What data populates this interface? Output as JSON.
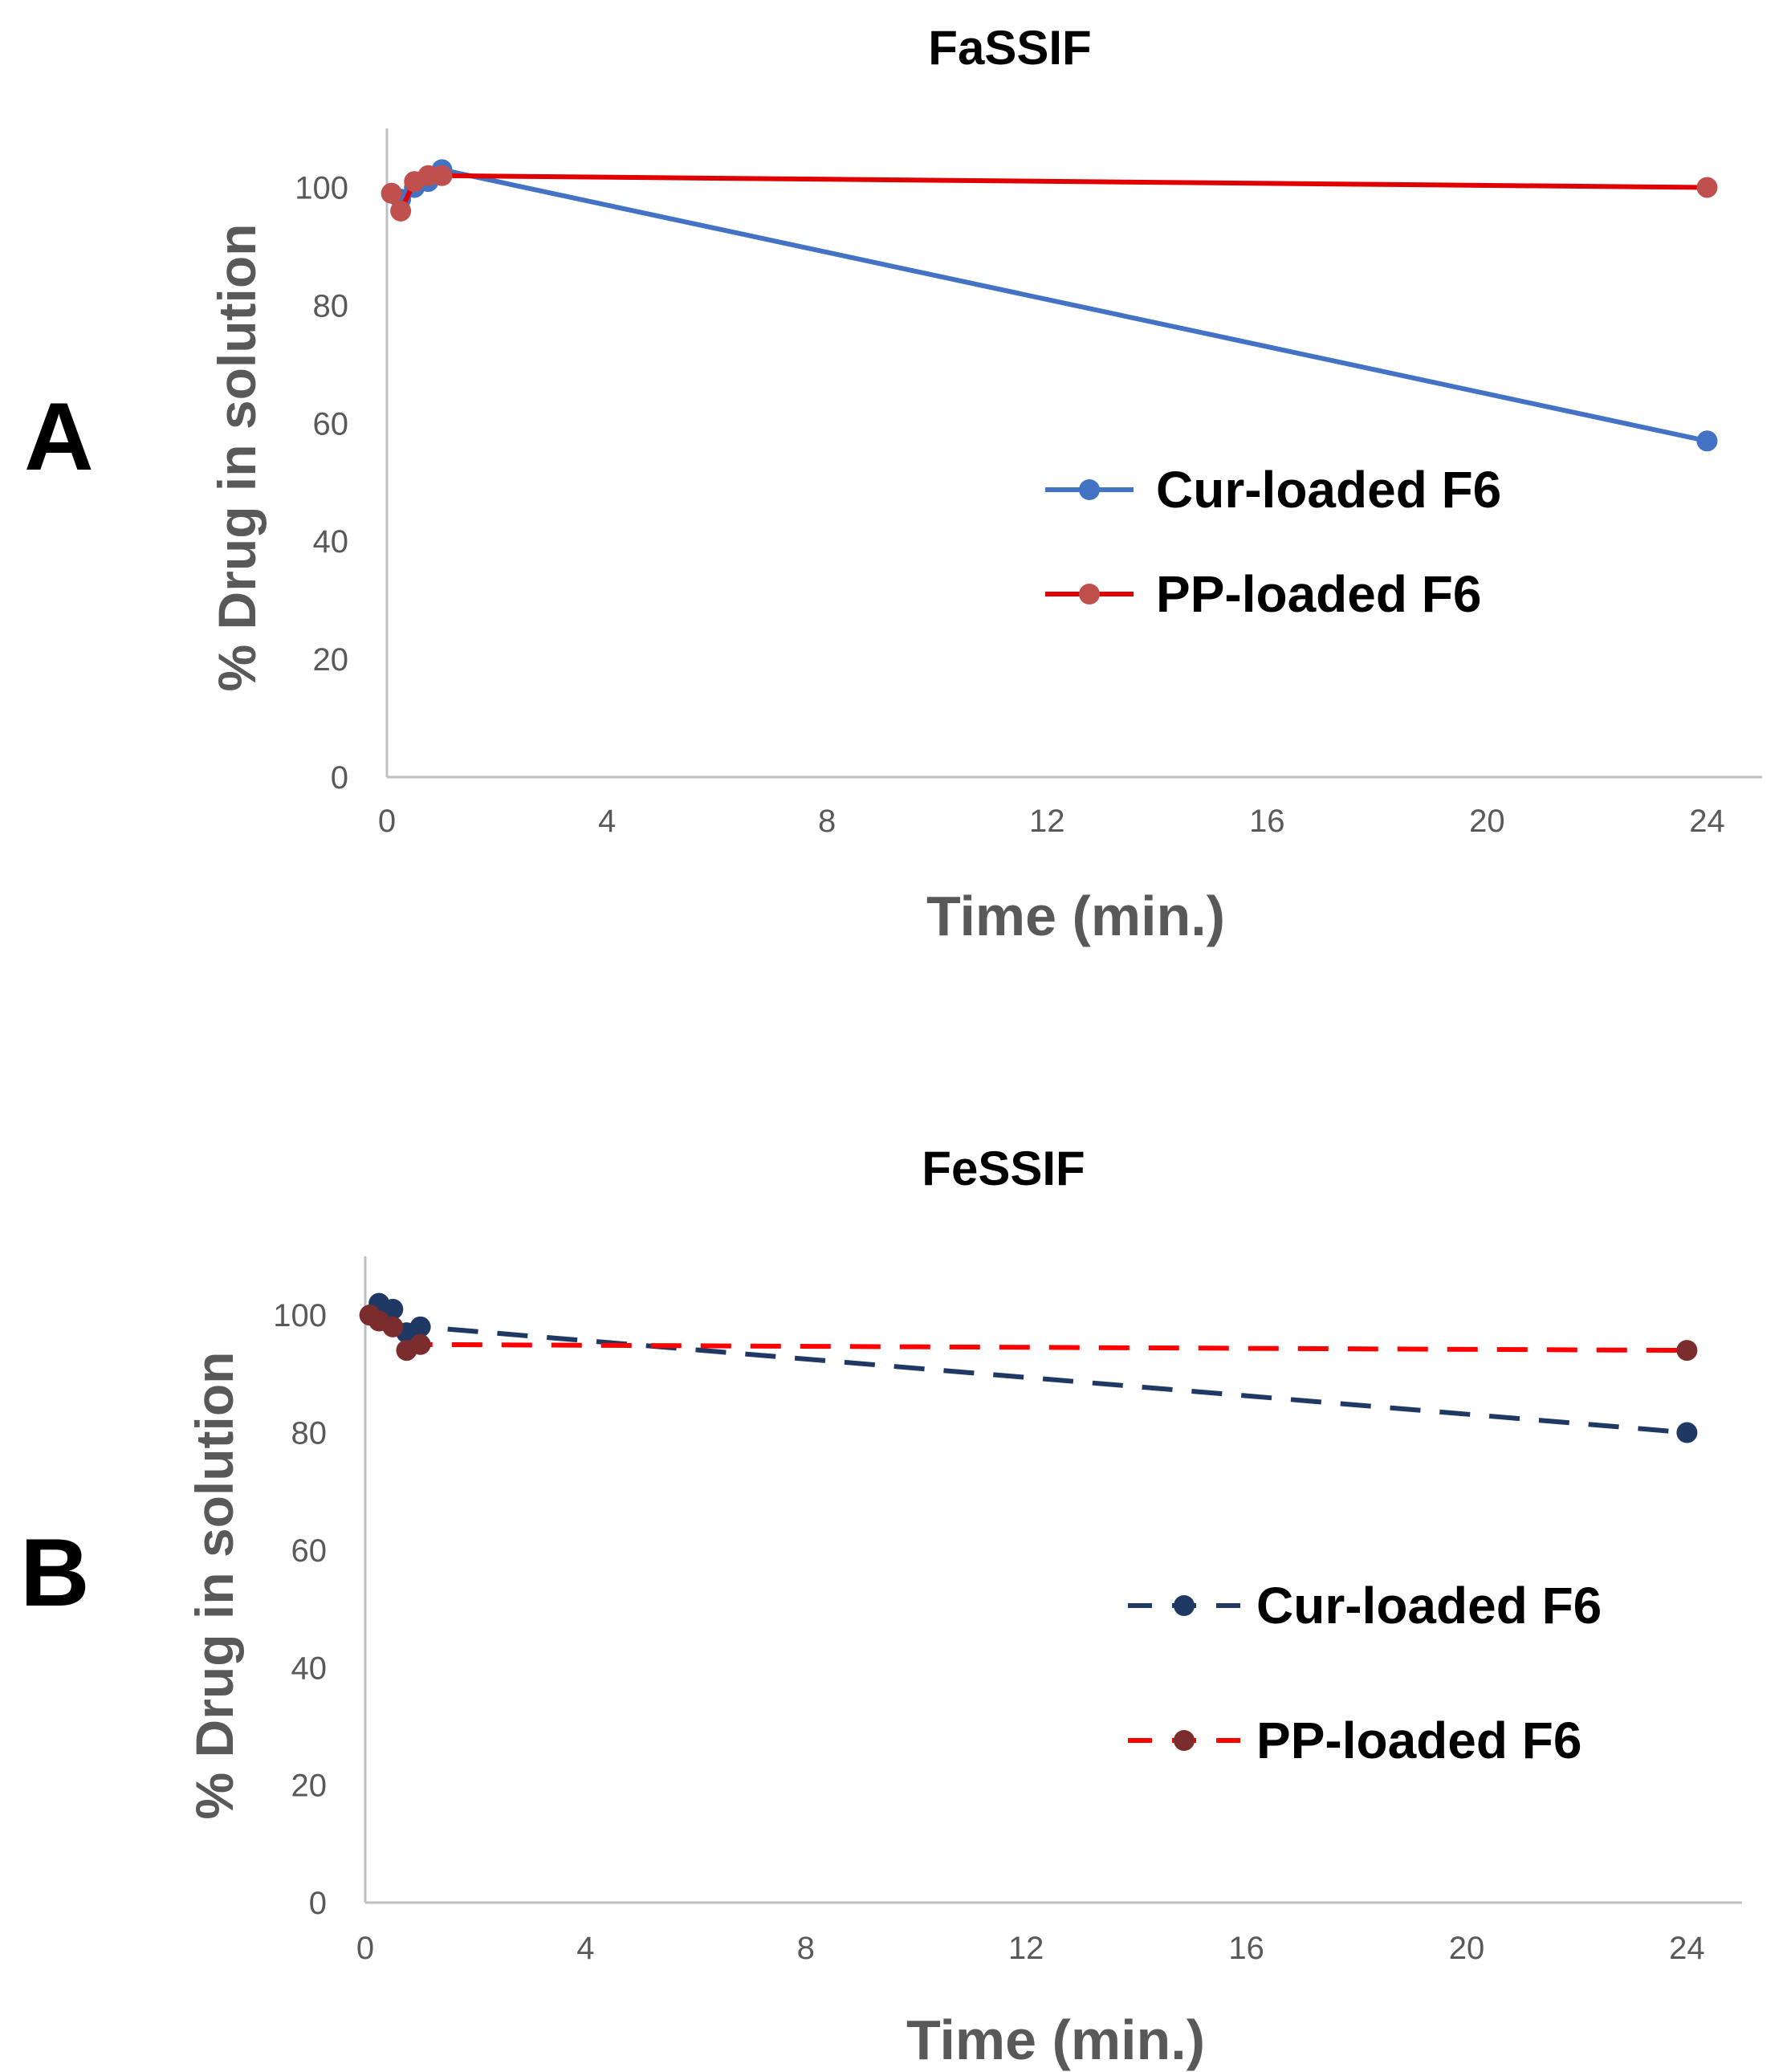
{
  "chart_data": [
    {
      "panel": "A",
      "type": "line",
      "title": "FaSSIF",
      "xlabel": "Time (min.)",
      "ylabel": "% Drug in solution",
      "xlim": [
        0,
        25
      ],
      "ylim": [
        0,
        110
      ],
      "xticks": [
        0,
        4,
        8,
        12,
        16,
        20,
        24
      ],
      "yticks": [
        0,
        20,
        40,
        60,
        80,
        100
      ],
      "legend_position": "center-right",
      "series": [
        {
          "name": "Cur-loaded F6",
          "color": "#4472C4",
          "style": "solid",
          "x": [
            0.083,
            0.25,
            0.5,
            0.75,
            1,
            24
          ],
          "y": [
            99,
            98,
            100,
            101,
            103,
            57
          ]
        },
        {
          "name": "PP-loaded F6",
          "color": "#E00000",
          "marker_color": "#C0504D",
          "style": "solid",
          "x": [
            0.083,
            0.25,
            0.5,
            0.75,
            1,
            24
          ],
          "y": [
            99,
            96,
            101,
            102,
            102,
            100
          ]
        }
      ]
    },
    {
      "panel": "B",
      "type": "line",
      "title": "FeSSIF",
      "xlabel": "Time (min.)",
      "ylabel": "% Drug in solution",
      "xlim": [
        0,
        25
      ],
      "ylim": [
        0,
        110
      ],
      "xticks": [
        0,
        4,
        8,
        12,
        16,
        20,
        24
      ],
      "yticks": [
        0,
        20,
        40,
        60,
        80,
        100
      ],
      "legend_position": "center-right",
      "series": [
        {
          "name": "Cur-loaded F6",
          "color": "#1F3864",
          "style": "dashed",
          "x": [
            0.083,
            0.25,
            0.5,
            0.75,
            1,
            24
          ],
          "y": [
            100,
            102,
            101,
            97,
            98,
            80
          ]
        },
        {
          "name": "PP-loaded F6",
          "color": "#FF0000",
          "marker_color": "#7B2C2C",
          "style": "dashed",
          "x": [
            0.083,
            0.25,
            0.5,
            0.75,
            1,
            24
          ],
          "y": [
            100,
            99,
            98,
            94,
            95,
            94
          ]
        }
      ]
    }
  ]
}
